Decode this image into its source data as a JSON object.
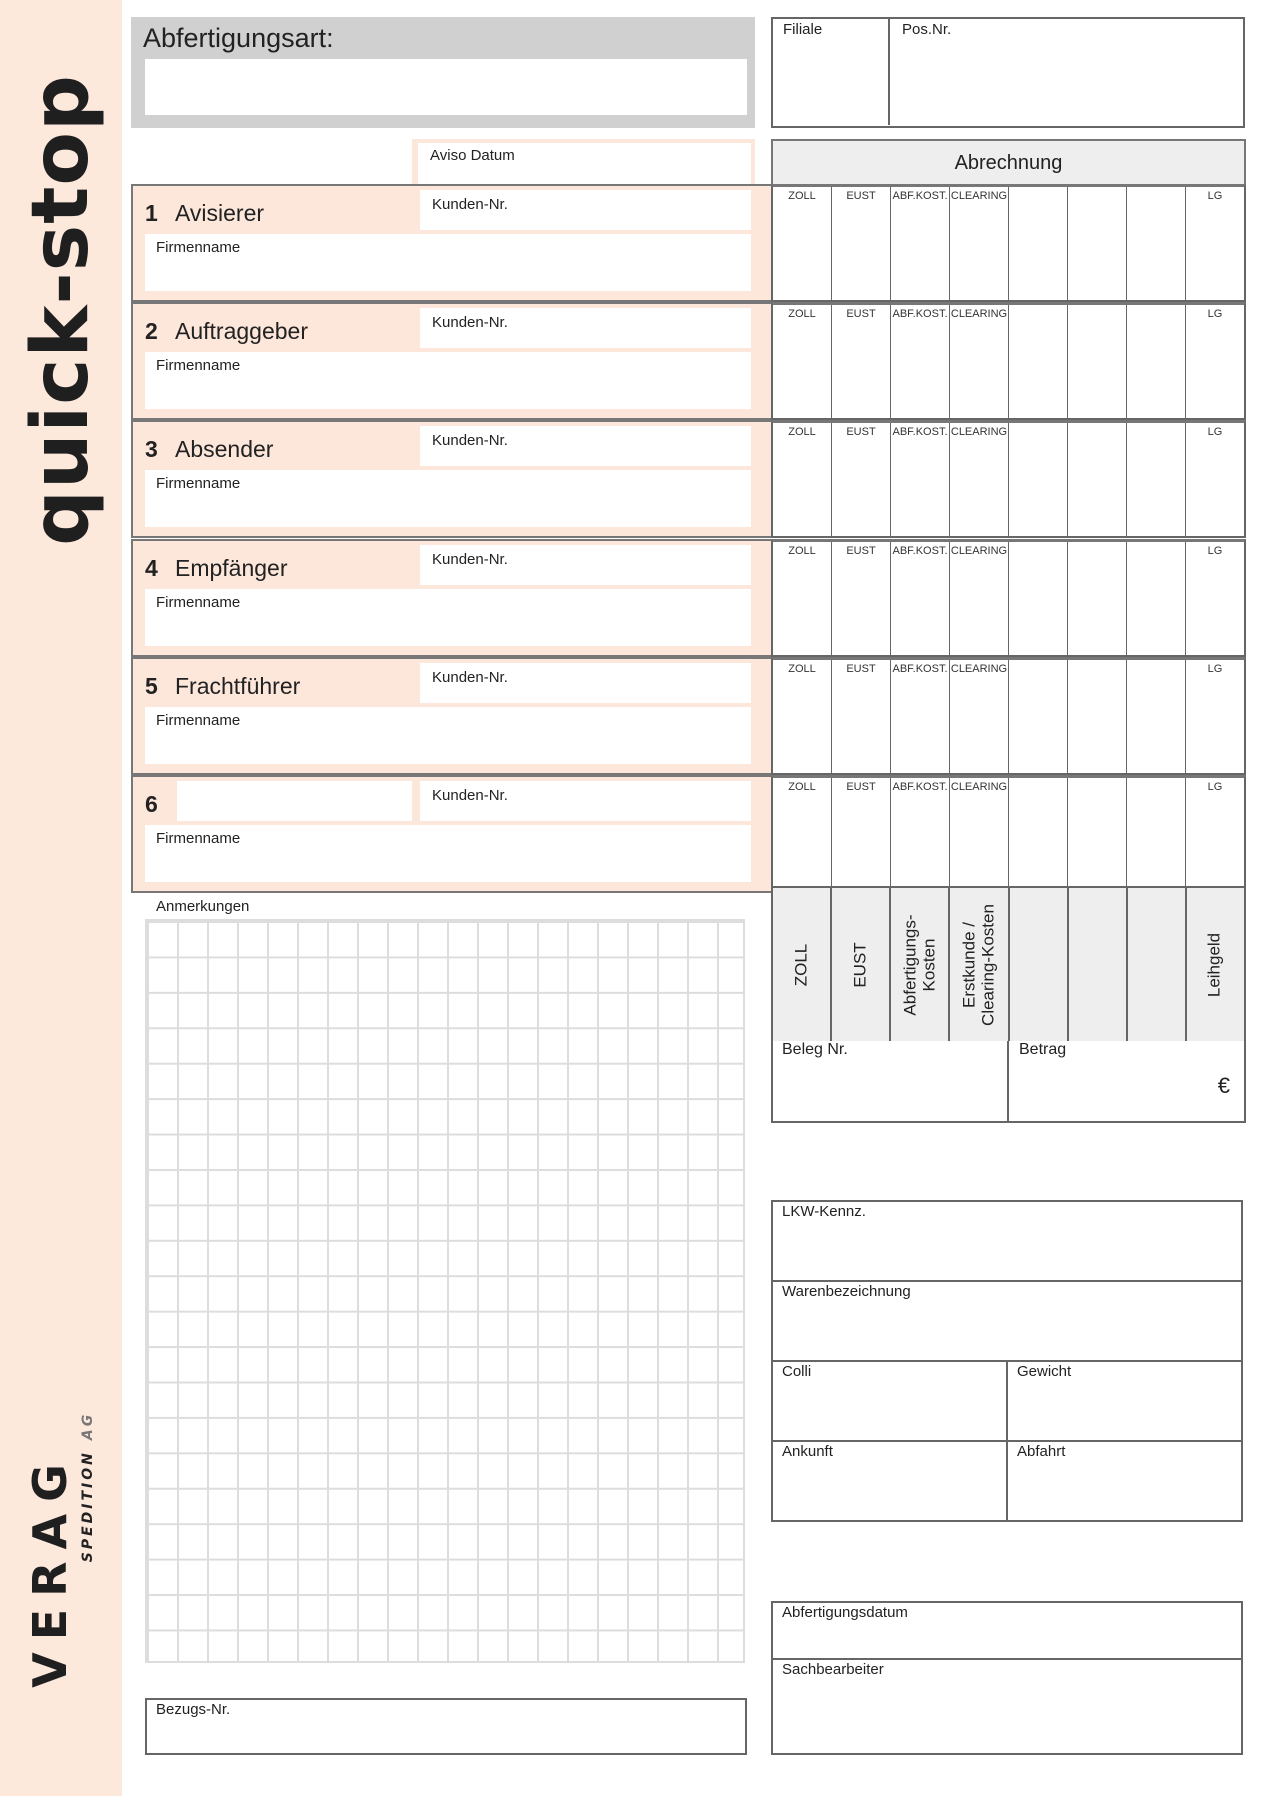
{
  "branding": {
    "product": "quick-stop",
    "company": "VERAG",
    "company_sub": "SPEDITION",
    "company_suffix": "AG"
  },
  "header": {
    "abfertigungsart": "Abfertigungsart:",
    "filiale": "Filiale",
    "pos_nr": "Pos.Nr.",
    "aviso_datum": "Aviso Datum",
    "abrechnung": "Abrechnung"
  },
  "sections": [
    {
      "number": "1",
      "title": "Avisierer",
      "kunden_nr": "Kunden-Nr.",
      "firmenname": "Firmenname"
    },
    {
      "number": "2",
      "title": "Auftraggeber",
      "kunden_nr": "Kunden-Nr.",
      "firmenname": "Firmenname"
    },
    {
      "number": "3",
      "title": "Absender",
      "kunden_nr": "Kunden-Nr.",
      "firmenname": "Firmenname"
    },
    {
      "number": "4",
      "title": "Empfänger",
      "kunden_nr": "Kunden-Nr.",
      "firmenname": "Firmenname"
    },
    {
      "number": "5",
      "title": "Frachtführer",
      "kunden_nr": "Kunden-Nr.",
      "firmenname": "Firmenname"
    },
    {
      "number": "6",
      "title": "",
      "kunden_nr": "Kunden-Nr.",
      "firmenname": "Firmenname"
    }
  ],
  "billing_columns": [
    "ZOLL",
    "EUST",
    "ABF.KOST.",
    "CLEARING",
    "",
    "",
    "",
    "LG"
  ],
  "billing_headers": [
    "ZOLL",
    "EUST",
    "Abfertigungs-\nKosten",
    "Erstkunde /\nClearing-Kosten",
    "",
    "",
    "",
    "Leihgeld"
  ],
  "beleg_nr": "Beleg Nr.",
  "betrag": "Betrag",
  "currency": "€",
  "anmerkungen": "Anmerkungen",
  "bezugs_nr": "Bezugs-Nr.",
  "details": {
    "lkw_kennz": "LKW-Kennz.",
    "warenbezeichnung": "Warenbezeichnung",
    "colli": "Colli",
    "gewicht": "Gewicht",
    "ankunft": "Ankunft",
    "abfahrt": "Abfahrt"
  },
  "footer": {
    "abfertigungsdatum": "Abfertigungsdatum",
    "sachbearbeiter": "Sachbearbeiter"
  },
  "colors": {
    "accent_bg": "#fde7db",
    "border": "#666666",
    "header_gray": "#d0d0d0"
  }
}
